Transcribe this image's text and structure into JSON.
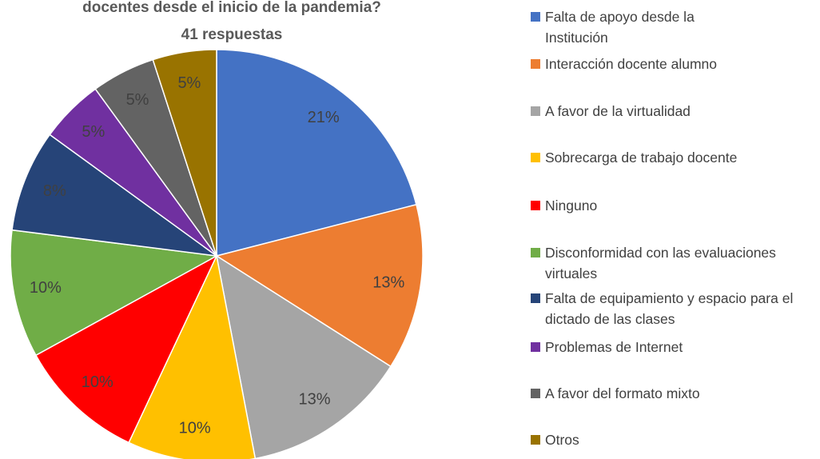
{
  "chart_data": {
    "type": "pie",
    "title": "docentes desde el inicio de la pandemia?",
    "subtitle": "41 respuestas",
    "series": [
      {
        "name": "Falta de apoyo desde la Institución",
        "color": "#4472c4",
        "values": [
          21
        ],
        "value_labels": [
          "21%"
        ]
      },
      {
        "name": "Interacción docente alumno",
        "color": "#ed7d31",
        "values": [
          13
        ],
        "value_labels": [
          "13%"
        ]
      },
      {
        "name": "A favor de la virtualidad",
        "color": "#a5a5a5",
        "values": [
          13
        ],
        "value_labels": [
          "13%"
        ]
      },
      {
        "name": "Sobrecarga de trabajo docente",
        "color": "#ffc000",
        "values": [
          10
        ],
        "value_labels": [
          "10%"
        ]
      },
      {
        "name": "Ninguno",
        "color": "#ff0000",
        "values": [
          10
        ],
        "value_labels": [
          "10%"
        ]
      },
      {
        "name": "Disconformidad con las evaluaciones virtuales",
        "color": "#70ad47",
        "values": [
          10
        ],
        "value_labels": [
          "10%"
        ]
      },
      {
        "name": "Falta de equipamiento y espacio para el dictado de las clases",
        "color": "#264478",
        "values": [
          8
        ],
        "value_labels": [
          "8%"
        ]
      },
      {
        "name": "Problemas de Internet",
        "color": "#7030a0",
        "values": [
          5
        ],
        "value_labels": [
          "5%"
        ]
      },
      {
        "name": "A favor del formato mixto",
        "color": "#636363",
        "values": [
          5
        ],
        "value_labels": [
          "5%"
        ]
      },
      {
        "name": "Otros",
        "color": "#997300",
        "values": [
          5
        ],
        "value_labels": [
          "5%"
        ]
      }
    ]
  }
}
